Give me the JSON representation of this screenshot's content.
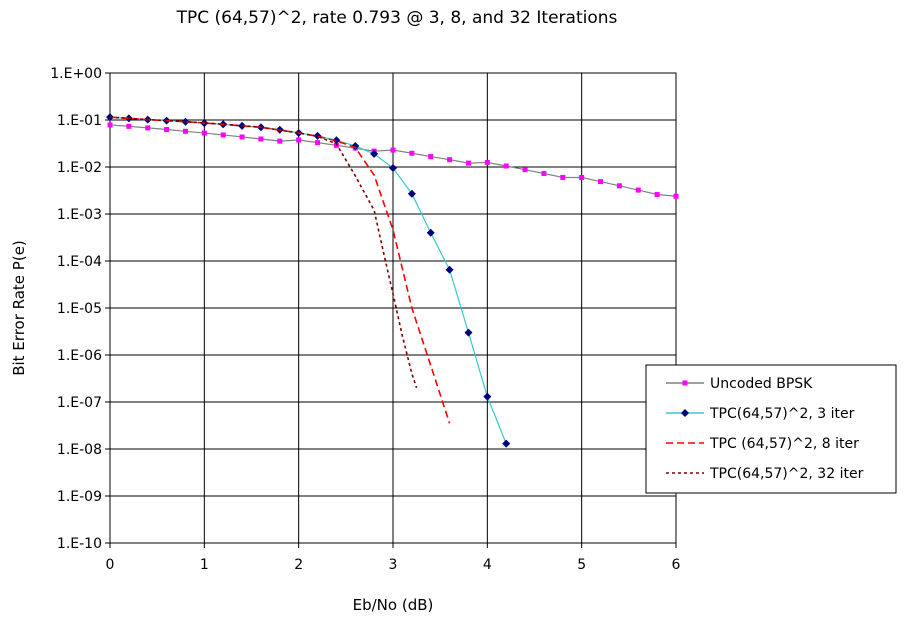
{
  "chart_data": {
    "type": "line",
    "title": "TPC (64,57)^2, rate 0.793 @ 3,  8, and 32 Iterations",
    "xlabel": "Eb/No (dB)",
    "ylabel": "Bit Error Rate P(e)",
    "xlim": [
      0,
      6
    ],
    "ylim": [
      1e-10,
      1
    ],
    "yscale": "log",
    "grid": true,
    "legend_position": "right",
    "x_ticks": [
      "0",
      "1",
      "2",
      "3",
      "4",
      "5",
      "6"
    ],
    "y_ticks": [
      "1.E-10",
      "1.E-09",
      "1.E-08",
      "1.E-07",
      "1.E-06",
      "1.E-05",
      "1.E-04",
      "1.E-03",
      "1.E-02",
      "1.E-01",
      "1.E+00"
    ],
    "series": [
      {
        "name": "Uncoded BPSK",
        "color": "#ff00ff",
        "line_color": "#808080",
        "style": "solid",
        "marker": "square",
        "x": [
          0,
          0.2,
          0.4,
          0.6,
          0.8,
          1.0,
          1.2,
          1.4,
          1.6,
          1.8,
          2.0,
          2.2,
          2.4,
          2.6,
          2.8,
          3.0,
          3.2,
          3.4,
          3.6,
          3.8,
          4.0,
          4.2,
          4.4,
          4.6,
          4.8,
          5.0,
          5.2,
          5.4,
          5.6,
          5.8,
          6.0
        ],
        "y": [
          0.0786,
          0.0733,
          0.068,
          0.0627,
          0.0575,
          0.0527,
          0.0481,
          0.0436,
          0.0394,
          0.0355,
          0.0375,
          0.033,
          0.0289,
          0.0252,
          0.0218,
          0.0229,
          0.0196,
          0.0167,
          0.0143,
          0.0121,
          0.0125,
          0.0105,
          0.00876,
          0.00727,
          0.006,
          0.00597,
          0.00489,
          0.00398,
          0.00323,
          0.0026,
          0.00239
        ]
      },
      {
        "name": "TPC(64,57)^2, 3 iter",
        "color": "#000080",
        "line_color": "#33cccc",
        "style": "solid",
        "marker": "diamond",
        "x": [
          0,
          0.2,
          0.4,
          0.6,
          0.8,
          1.0,
          1.2,
          1.4,
          1.6,
          1.8,
          2.0,
          2.2,
          2.4,
          2.6,
          2.8,
          3.0,
          3.2,
          3.4,
          3.6,
          3.8,
          4.0,
          4.2
        ],
        "y": [
          0.115,
          0.108,
          0.102,
          0.097,
          0.092,
          0.086,
          0.081,
          0.075,
          0.07,
          0.062,
          0.053,
          0.046,
          0.037,
          0.028,
          0.019,
          0.0095,
          0.0027,
          0.0004,
          6.5e-05,
          3e-06,
          1.3e-07,
          1.3e-08
        ]
      },
      {
        "name": "TPC (64,57)^2, 8 iter",
        "color": "#ff0000",
        "style": "dashed",
        "marker": "none",
        "x": [
          0,
          0.4,
          0.8,
          1.2,
          1.6,
          2.0,
          2.2,
          2.4,
          2.6,
          2.8,
          3.0,
          3.2,
          3.4,
          3.6
        ],
        "y": [
          0.115,
          0.102,
          0.092,
          0.081,
          0.07,
          0.053,
          0.045,
          0.036,
          0.026,
          0.0067,
          0.00046,
          1e-05,
          6e-07,
          3.5e-08
        ]
      },
      {
        "name": "TPC(64,57)^2, 32 iter",
        "color": "#800000",
        "style": "dotted",
        "marker": "none",
        "x": [
          0,
          0.4,
          0.8,
          1.2,
          1.6,
          2.0,
          2.2,
          2.4,
          2.6,
          2.8,
          2.9,
          3.0,
          3.1,
          3.2,
          3.25
        ],
        "y": [
          0.115,
          0.102,
          0.092,
          0.081,
          0.07,
          0.053,
          0.045,
          0.031,
          0.0065,
          0.0012,
          0.00015,
          2e-05,
          2.5e-06,
          4e-07,
          2e-07
        ]
      }
    ]
  }
}
